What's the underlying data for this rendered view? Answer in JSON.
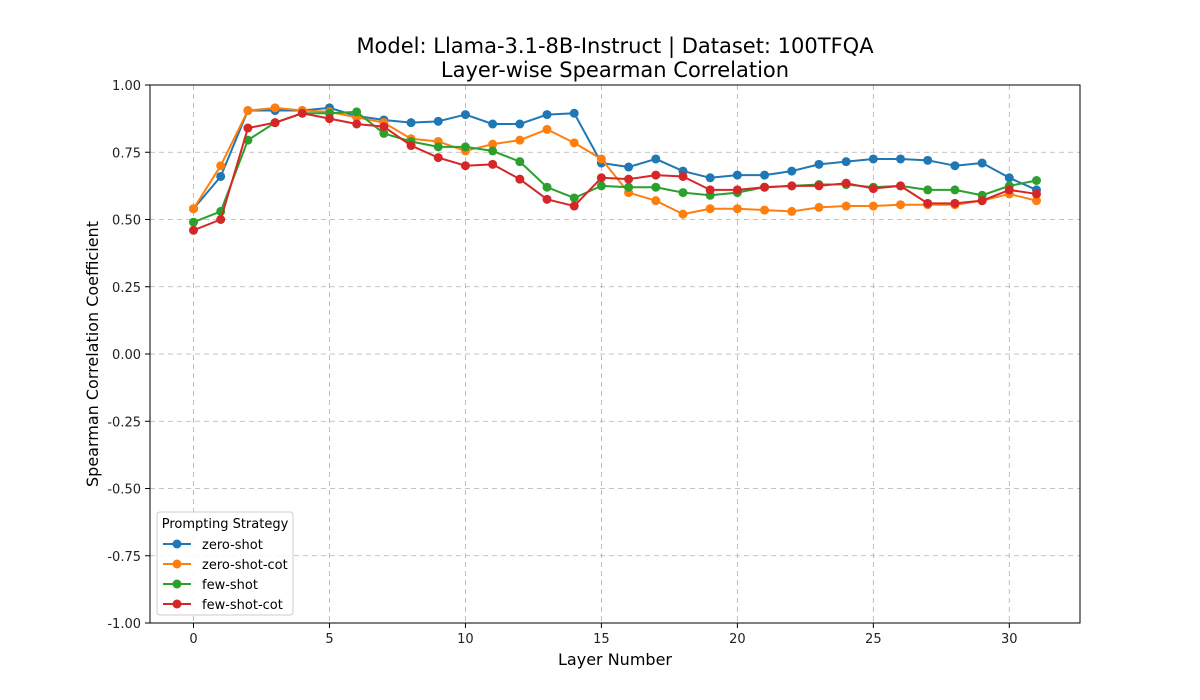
{
  "chart_data": {
    "type": "line",
    "title": "Model: Llama-3.1-8B-Instruct | Dataset: 100TFQA",
    "subtitle": "Layer-wise Spearman Correlation",
    "xlabel": "Layer Number",
    "ylabel": "Spearman Correlation Coefficient",
    "xlim": [
      -1.6,
      32.6
    ],
    "ylim": [
      -1.0,
      1.0
    ],
    "xticks": [
      0,
      5,
      10,
      15,
      20,
      25,
      30
    ],
    "yticks": [
      -1.0,
      -0.75,
      -0.5,
      -0.25,
      0.0,
      0.25,
      0.5,
      0.75,
      1.0
    ],
    "ytick_labels": [
      "-1.00",
      "-0.75",
      "-0.50",
      "-0.25",
      "0.00",
      "0.25",
      "0.50",
      "0.75",
      "1.00"
    ],
    "grid": true,
    "legend": {
      "title": "Prompting Strategy",
      "placement": "lower-left"
    },
    "x": [
      0,
      1,
      2,
      3,
      4,
      5,
      6,
      7,
      8,
      9,
      10,
      11,
      12,
      13,
      14,
      15,
      16,
      17,
      18,
      19,
      20,
      21,
      22,
      23,
      24,
      25,
      26,
      27,
      28,
      29,
      30,
      31
    ],
    "series": [
      {
        "name": "zero-shot",
        "color": "#1f77b4",
        "values": [
          0.54,
          0.66,
          0.905,
          0.905,
          0.905,
          0.915,
          0.885,
          0.87,
          0.86,
          0.865,
          0.89,
          0.855,
          0.855,
          0.89,
          0.895,
          0.71,
          0.695,
          0.725,
          0.68,
          0.655,
          0.665,
          0.665,
          0.68,
          0.705,
          0.715,
          0.725,
          0.725,
          0.72,
          0.7,
          0.71,
          0.655,
          0.61
        ]
      },
      {
        "name": "zero-shot-cot",
        "color": "#ff7f0e",
        "values": [
          0.54,
          0.7,
          0.905,
          0.915,
          0.905,
          0.9,
          0.88,
          0.86,
          0.8,
          0.79,
          0.755,
          0.78,
          0.795,
          0.835,
          0.785,
          0.725,
          0.6,
          0.57,
          0.52,
          0.54,
          0.54,
          0.535,
          0.53,
          0.545,
          0.55,
          0.55,
          0.555,
          0.555,
          0.555,
          0.57,
          0.595,
          0.57
        ]
      },
      {
        "name": "few-shot",
        "color": "#2ca02c",
        "values": [
          0.49,
          0.53,
          0.795,
          0.86,
          0.895,
          0.895,
          0.9,
          0.82,
          0.79,
          0.77,
          0.77,
          0.755,
          0.715,
          0.62,
          0.58,
          0.625,
          0.62,
          0.62,
          0.6,
          0.59,
          0.6,
          0.62,
          0.625,
          0.63,
          0.63,
          0.62,
          0.625,
          0.61,
          0.61,
          0.59,
          0.625,
          0.645
        ]
      },
      {
        "name": "few-shot-cot",
        "color": "#d62728",
        "values": [
          0.46,
          0.5,
          0.84,
          0.86,
          0.895,
          0.875,
          0.855,
          0.845,
          0.775,
          0.73,
          0.7,
          0.705,
          0.65,
          0.575,
          0.55,
          0.655,
          0.65,
          0.665,
          0.66,
          0.61,
          0.61,
          0.62,
          0.625,
          0.625,
          0.635,
          0.615,
          0.625,
          0.56,
          0.56,
          0.57,
          0.61,
          0.595
        ]
      }
    ]
  }
}
